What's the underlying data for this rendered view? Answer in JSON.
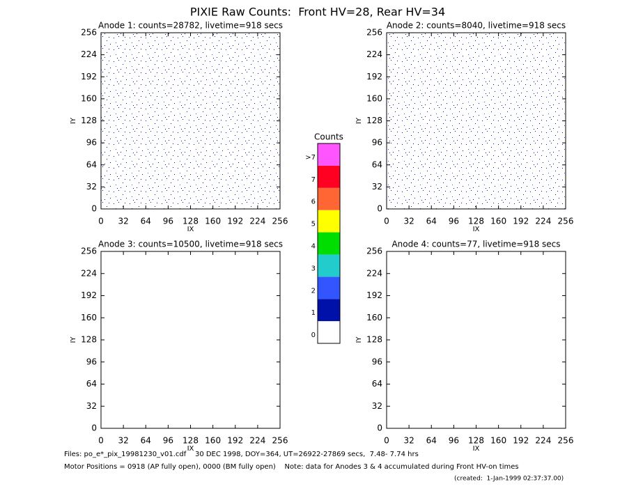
{
  "title": "PIXIE Raw Counts:  Front HV=28, Rear HV=34",
  "chart_data": [
    {
      "type": "heatmap",
      "title": "Anode 1: counts=28782, livetime=918 secs",
      "xlabel": "IX",
      "ylabel": "IY",
      "xlim": [
        0,
        256
      ],
      "ylim": [
        0,
        256
      ],
      "xticks": [
        0,
        32,
        64,
        96,
        128,
        160,
        192,
        224,
        256
      ],
      "yticks": [
        0,
        32,
        64,
        96,
        128,
        160,
        192,
        224,
        256
      ]
    },
    {
      "type": "heatmap",
      "title": "Anode 2: counts=8040, livetime=918 secs",
      "xlabel": "IX",
      "ylabel": "IY",
      "xlim": [
        0,
        256
      ],
      "ylim": [
        0,
        256
      ],
      "xticks": [
        0,
        32,
        64,
        96,
        128,
        160,
        192,
        224,
        256
      ],
      "yticks": [
        0,
        32,
        64,
        96,
        128,
        160,
        192,
        224,
        256
      ]
    },
    {
      "type": "heatmap",
      "title": "Anode 3: counts=10500, livetime=918 secs",
      "xlabel": "IX",
      "ylabel": "IY",
      "xlim": [
        0,
        256
      ],
      "ylim": [
        0,
        256
      ],
      "xticks": [
        0,
        32,
        64,
        96,
        128,
        160,
        192,
        224,
        256
      ],
      "yticks": [
        0,
        32,
        64,
        96,
        128,
        160,
        192,
        224,
        256
      ]
    },
    {
      "type": "heatmap",
      "title": "Anode 4: counts=77, livetime=918 secs",
      "xlabel": "IX",
      "ylabel": "IY",
      "xlim": [
        0,
        256
      ],
      "ylim": [
        0,
        256
      ],
      "xticks": [
        0,
        32,
        64,
        96,
        128,
        160,
        192,
        224,
        256
      ],
      "yticks": [
        0,
        32,
        64,
        96,
        128,
        160,
        192,
        224,
        256
      ]
    }
  ],
  "colorbar": {
    "title": "Counts",
    "levels": [
      {
        "label": "0",
        "color": "#ffffff"
      },
      {
        "label": "1",
        "color": "#0011aa"
      },
      {
        "label": "2",
        "color": "#3355ff"
      },
      {
        "label": "3",
        "color": "#22cccc"
      },
      {
        "label": "4",
        "color": "#00dd00"
      },
      {
        "label": "5",
        "color": "#ffff00"
      },
      {
        "label": "6",
        "color": "#ff6633"
      },
      {
        "label": "7",
        "color": "#ff0022"
      },
      {
        "label": ">7",
        "color": "#ff55ff"
      }
    ]
  },
  "footer": [
    "Files: po_e*_pix_19981230_v01.cdf    30 DEC 1998, DOY=364, UT=26922-27869 secs,  7.48- 7.74 hrs",
    "Motor Positions = 0918 (AP fully open), 0000 (BM fully open)    Note: data for Anodes 3 & 4 accumulated during Front HV-on times",
    "(created:  1-Jan-1999 02:37:37.00)"
  ]
}
